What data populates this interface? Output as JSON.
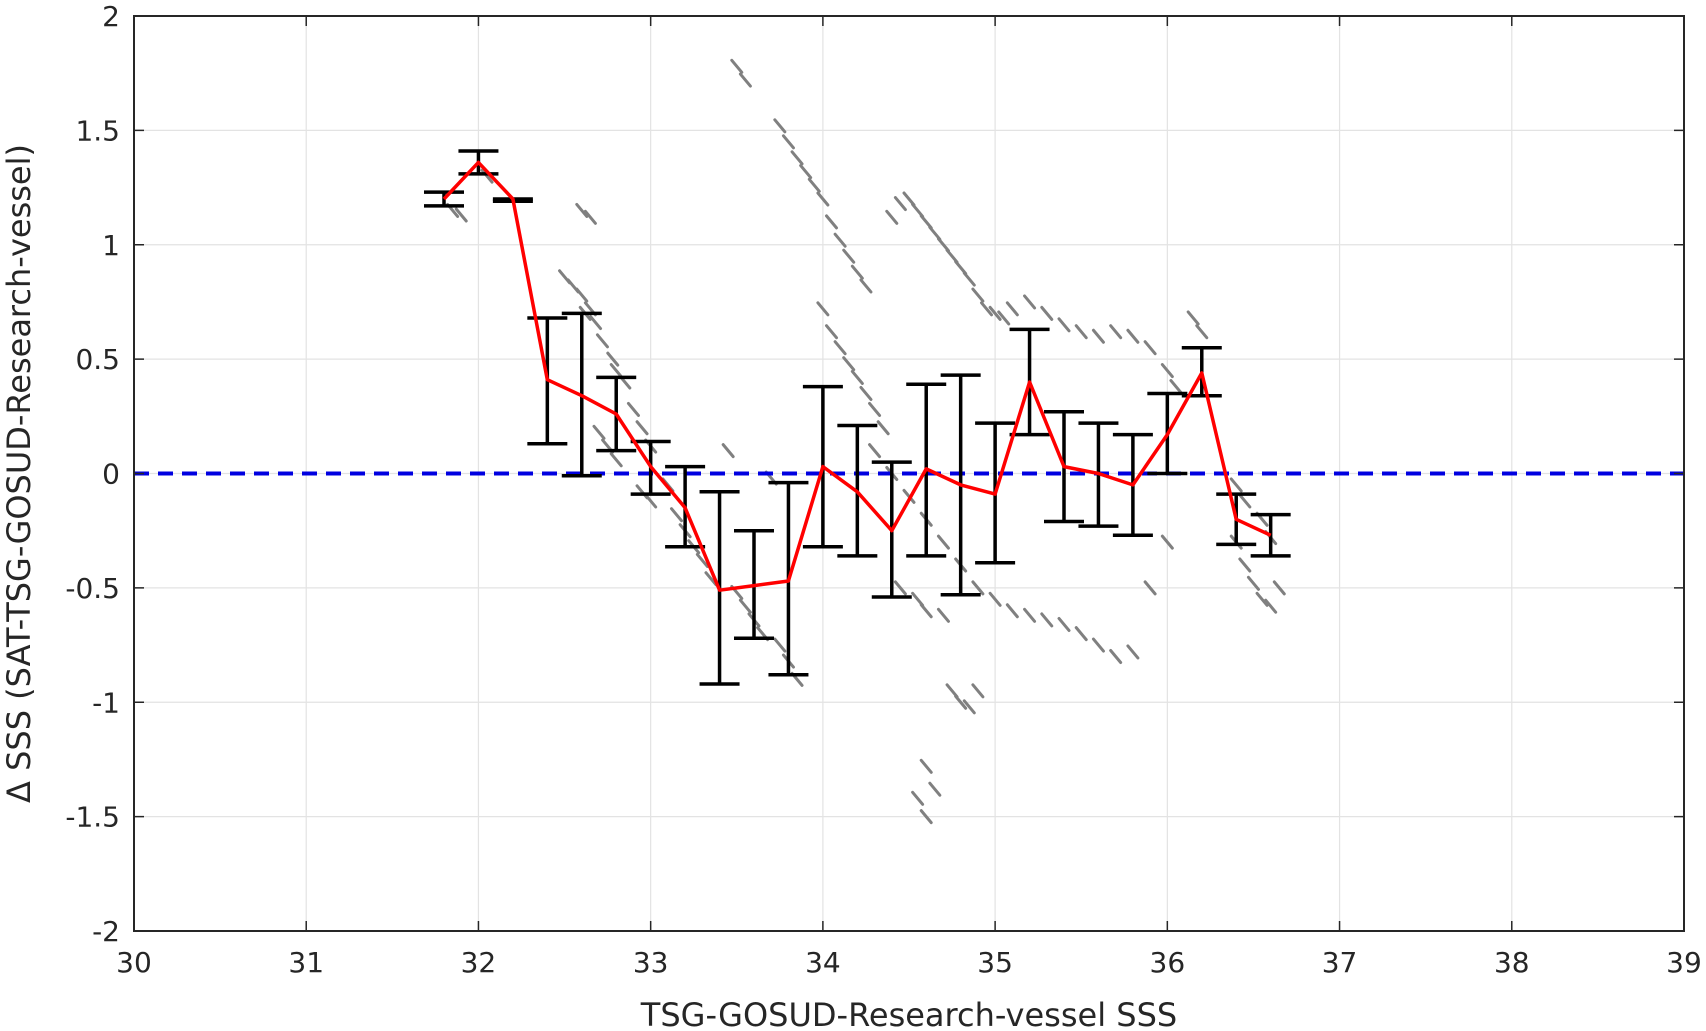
{
  "chart_data": {
    "type": "line",
    "title": "",
    "xlabel": "TSG-GOSUD-Research-vessel SSS",
    "ylabel": "Δ SSS (SAT-TSG-GOSUD-Research-vessel)",
    "xlim": [
      30,
      39
    ],
    "ylim": [
      -2,
      2
    ],
    "xticks": [
      30,
      31,
      32,
      33,
      34,
      35,
      36,
      37,
      38,
      39
    ],
    "yticks": [
      -2,
      -1.5,
      -1,
      -0.5,
      0,
      0.5,
      1,
      1.5,
      2
    ],
    "xtick_labels": [
      "30",
      "31",
      "32",
      "33",
      "34",
      "35",
      "36",
      "37",
      "38",
      "39"
    ],
    "ytick_labels": [
      "-2",
      "-1.5",
      "-1",
      "-0.5",
      "0",
      "0.5",
      "1",
      "1.5",
      "2"
    ],
    "grid": true,
    "series": [
      {
        "role": "binned-mean-with-error-bars",
        "color": "#ff0000",
        "errorbar_color": "#000000",
        "x": [
          31.8,
          32.0,
          32.2,
          32.4,
          32.6,
          32.8,
          33.0,
          33.2,
          33.4,
          33.6,
          33.8,
          34.0,
          34.2,
          34.4,
          34.6,
          34.8,
          35.0,
          35.2,
          35.4,
          35.6,
          35.8,
          36.0,
          36.2,
          36.4,
          36.6
        ],
        "y": [
          1.2,
          1.36,
          1.2,
          0.41,
          0.34,
          0.26,
          0.03,
          -0.15,
          -0.51,
          -0.49,
          -0.47,
          0.03,
          -0.08,
          -0.25,
          0.02,
          -0.05,
          -0.09,
          0.4,
          0.03,
          0.0,
          -0.05,
          0.17,
          0.44,
          -0.2,
          -0.27
        ],
        "lower": [
          1.17,
          1.31,
          1.19,
          0.13,
          -0.01,
          0.1,
          -0.09,
          -0.32,
          -0.92,
          -0.72,
          -0.88,
          -0.32,
          -0.36,
          -0.54,
          -0.36,
          -0.53,
          -0.39,
          0.17,
          -0.21,
          -0.23,
          -0.27,
          0.0,
          0.34,
          -0.31,
          -0.36
        ],
        "upper": [
          1.23,
          1.41,
          1.2,
          0.68,
          0.7,
          0.42,
          0.14,
          0.03,
          -0.08,
          -0.25,
          -0.04,
          0.38,
          0.21,
          0.05,
          0.39,
          0.43,
          0.22,
          0.63,
          0.27,
          0.22,
          0.17,
          0.35,
          0.55,
          -0.09,
          -0.18
        ]
      },
      {
        "role": "zero-reference",
        "color": "#0000e0",
        "style": "dashed",
        "y": 0
      },
      {
        "role": "individual-samples",
        "color": "#808080",
        "style": "scatter-segments",
        "points": [
          [
            31.85,
            1.15
          ],
          [
            31.9,
            1.13
          ],
          [
            32.05,
            1.3
          ],
          [
            32.6,
            1.15
          ],
          [
            32.65,
            1.12
          ],
          [
            32.5,
            0.86
          ],
          [
            32.55,
            0.82
          ],
          [
            32.6,
            0.78
          ],
          [
            32.62,
            0.7
          ],
          [
            32.65,
            0.72
          ],
          [
            32.68,
            0.66
          ],
          [
            32.72,
            0.58
          ],
          [
            32.78,
            0.5
          ],
          [
            32.8,
            0.45
          ],
          [
            32.85,
            0.4
          ],
          [
            32.7,
            0.18
          ],
          [
            32.75,
            0.12
          ],
          [
            32.8,
            0.06
          ],
          [
            32.9,
            0.28
          ],
          [
            32.95,
            0.2
          ],
          [
            33.0,
            0.12
          ],
          [
            32.95,
            -0.08
          ],
          [
            33.0,
            -0.12
          ],
          [
            33.1,
            -0.05
          ],
          [
            33.15,
            -0.18
          ],
          [
            33.2,
            -0.25
          ],
          [
            33.25,
            -0.32
          ],
          [
            33.3,
            -0.38
          ],
          [
            33.35,
            -0.46
          ],
          [
            33.45,
            0.1
          ],
          [
            33.5,
            -0.52
          ],
          [
            33.55,
            -0.58
          ],
          [
            33.6,
            -0.64
          ],
          [
            33.65,
            -0.7
          ],
          [
            33.7,
            -0.02
          ],
          [
            33.75,
            -0.75
          ],
          [
            33.8,
            -0.82
          ],
          [
            33.85,
            -0.9
          ],
          [
            33.5,
            1.78
          ],
          [
            33.55,
            1.72
          ],
          [
            33.75,
            1.52
          ],
          [
            33.8,
            1.45
          ],
          [
            33.85,
            1.38
          ],
          [
            33.9,
            1.32
          ],
          [
            33.95,
            1.26
          ],
          [
            34.0,
            1.2
          ],
          [
            34.05,
            1.1
          ],
          [
            34.1,
            1.02
          ],
          [
            34.15,
            0.95
          ],
          [
            34.2,
            0.88
          ],
          [
            34.25,
            0.82
          ],
          [
            34.0,
            0.72
          ],
          [
            34.05,
            0.62
          ],
          [
            34.1,
            0.55
          ],
          [
            34.15,
            0.48
          ],
          [
            34.2,
            0.42
          ],
          [
            34.25,
            0.35
          ],
          [
            34.3,
            0.28
          ],
          [
            34.35,
            0.2
          ],
          [
            34.4,
            1.12
          ],
          [
            34.45,
            1.18
          ],
          [
            34.5,
            1.2
          ],
          [
            34.55,
            1.15
          ],
          [
            34.6,
            1.1
          ],
          [
            34.65,
            1.05
          ],
          [
            34.7,
            1.0
          ],
          [
            34.75,
            0.95
          ],
          [
            34.8,
            0.9
          ],
          [
            34.85,
            0.85
          ],
          [
            34.9,
            0.78
          ],
          [
            34.95,
            0.72
          ],
          [
            35.0,
            0.7
          ],
          [
            35.05,
            0.68
          ],
          [
            35.1,
            0.72
          ],
          [
            35.2,
            0.75
          ],
          [
            35.3,
            0.7
          ],
          [
            35.4,
            0.65
          ],
          [
            35.5,
            0.62
          ],
          [
            35.6,
            0.6
          ],
          [
            35.7,
            0.62
          ],
          [
            35.8,
            0.6
          ],
          [
            35.9,
            0.55
          ],
          [
            36.0,
            0.45
          ],
          [
            36.05,
            0.38
          ],
          [
            36.15,
            0.68
          ],
          [
            36.2,
            0.62
          ],
          [
            34.3,
            0.1
          ],
          [
            34.4,
            0.0
          ],
          [
            34.5,
            -0.1
          ],
          [
            34.6,
            -0.2
          ],
          [
            34.7,
            -0.3
          ],
          [
            34.8,
            -0.4
          ],
          [
            34.9,
            -0.5
          ],
          [
            35.0,
            -0.55
          ],
          [
            35.1,
            -0.6
          ],
          [
            35.2,
            -0.62
          ],
          [
            35.3,
            -0.64
          ],
          [
            35.4,
            -0.66
          ],
          [
            35.5,
            -0.7
          ],
          [
            35.6,
            -0.75
          ],
          [
            35.7,
            -0.8
          ],
          [
            35.8,
            -0.78
          ],
          [
            35.9,
            -0.5
          ],
          [
            36.0,
            -0.3
          ],
          [
            34.45,
            -0.5
          ],
          [
            34.55,
            -0.55
          ],
          [
            34.6,
            -0.6
          ],
          [
            34.7,
            -0.62
          ],
          [
            34.75,
            -0.95
          ],
          [
            34.8,
            -1.0
          ],
          [
            34.85,
            -1.02
          ],
          [
            34.9,
            -0.95
          ],
          [
            34.6,
            -1.28
          ],
          [
            34.65,
            -1.38
          ],
          [
            34.55,
            -1.42
          ],
          [
            34.6,
            -1.5
          ],
          [
            36.4,
            -0.3
          ],
          [
            36.45,
            -0.4
          ],
          [
            36.5,
            -0.48
          ],
          [
            36.55,
            -0.55
          ],
          [
            36.6,
            -0.58
          ],
          [
            36.65,
            -0.5
          ],
          [
            36.4,
            -0.05
          ],
          [
            36.45,
            -0.12
          ],
          [
            36.55,
            -0.2
          ],
          [
            36.6,
            -0.28
          ]
        ]
      }
    ]
  }
}
